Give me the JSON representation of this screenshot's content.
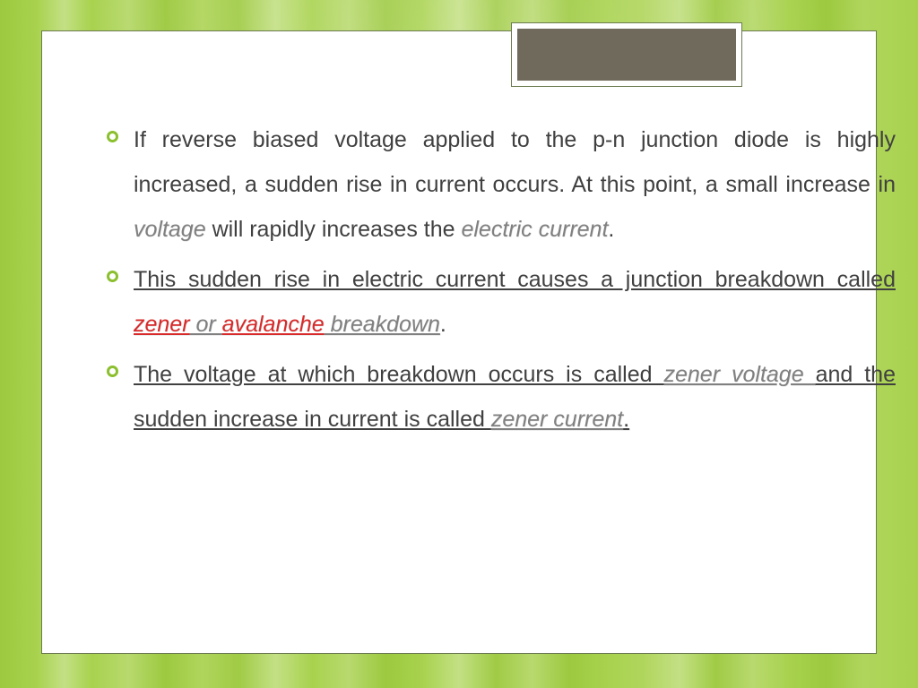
{
  "theme": {
    "accent": "#8bbf2e",
    "bullet_border": "#8bbf2e",
    "text_color": "#404040",
    "emphasis_color": "#808080",
    "highlight_color": "#d82a2a",
    "card_bg": "#ffffff",
    "card_border": "#6b7b4f",
    "tab_fill": "#706a5d",
    "font_size_pt": 19,
    "line_height": 2.0
  },
  "bullets": [
    {
      "segments": [
        {
          "text": "If reverse biased voltage applied to the p-n junction diode is highly increased, a sudden rise in current occurs. At this point, a small increase in "
        },
        {
          "text": "voltage",
          "style": "em"
        },
        {
          "text": " will rapidly increases the "
        },
        {
          "text": "electric current",
          "style": "em"
        },
        {
          "text": "."
        }
      ]
    },
    {
      "segments": [
        {
          "text": "This sudden rise in electric current causes a junction breakdown called ",
          "style": "u"
        },
        {
          "text": "zener",
          "style": "u em red glow"
        },
        {
          "text": " or ",
          "style": "u em glow"
        },
        {
          "text": "avalanche",
          "style": "u em red glow"
        },
        {
          "text": " breakdown",
          "style": "u em glow"
        },
        {
          "text": "."
        }
      ]
    },
    {
      "segments": [
        {
          "text": " The voltage at which breakdown occurs is called ",
          "style": "u"
        },
        {
          "text": "zener voltage ",
          "style": "u em glow"
        },
        {
          "text": "and the sudden increase in current is called ",
          "style": "u"
        },
        {
          "text": "zener current",
          "style": "u em glow"
        },
        {
          "text": ".",
          "style": "u glow"
        }
      ]
    }
  ]
}
